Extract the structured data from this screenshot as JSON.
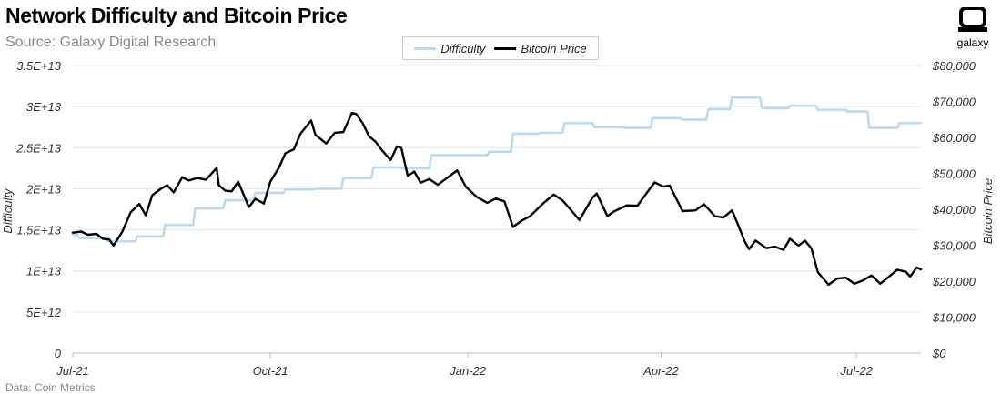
{
  "header": {
    "title": "Network Difficulty and Bitcoin Price",
    "subtitle": "Source: Galaxy Digital Research"
  },
  "logo": {
    "icon": "galaxy-logo-icon",
    "text": "galaxy"
  },
  "footer": {
    "source": "Data: Coin Metrics"
  },
  "colors": {
    "difficulty": "#bcd9ee",
    "price": "#000000",
    "grid": "#e6e6e6"
  },
  "chart_data": {
    "type": "line",
    "title": "Network Difficulty and Bitcoin Price",
    "subtitle": "Source: Galaxy Digital Research",
    "legend": {
      "placement": "top-center",
      "entries": [
        "Difficulty",
        "Bitcoin Price"
      ]
    },
    "grid": {
      "horizontal": true,
      "vertical": false
    },
    "x_axis": {
      "range": [
        "2021-07-01",
        "2022-07-31"
      ],
      "ticks": [
        {
          "date": "2021-07-01",
          "label": "Jul-21"
        },
        {
          "date": "2021-10-01",
          "label": "Oct-21"
        },
        {
          "date": "2022-01-01",
          "label": "Jan-22"
        },
        {
          "date": "2022-04-01",
          "label": "Apr-22"
        },
        {
          "date": "2022-07-01",
          "label": "Jul-22"
        }
      ]
    },
    "y_axis_left": {
      "label": "Difficulty",
      "range": [
        0,
        35000000000000.0
      ],
      "ticks": [
        {
          "value": 0,
          "label": "0"
        },
        {
          "value": 5000000000000.0,
          "label": "5E+12"
        },
        {
          "value": 10000000000000.0,
          "label": "1E+13"
        },
        {
          "value": 15000000000000.0,
          "label": "1.5E+13"
        },
        {
          "value": 20000000000000.0,
          "label": "2E+13"
        },
        {
          "value": 25000000000000.0,
          "label": "2.5E+13"
        },
        {
          "value": 30000000000000.0,
          "label": "3E+13"
        },
        {
          "value": 35000000000000.0,
          "label": "3.5E+13"
        }
      ]
    },
    "y_axis_right": {
      "label": "Bitcoin Price",
      "range": [
        0,
        80000
      ],
      "ticks": [
        {
          "value": 0,
          "label": "$0"
        },
        {
          "value": 10000,
          "label": "$10,000"
        },
        {
          "value": 20000,
          "label": "$20,000"
        },
        {
          "value": 30000,
          "label": "$30,000"
        },
        {
          "value": 40000,
          "label": "$40,000"
        },
        {
          "value": 50000,
          "label": "$50,000"
        },
        {
          "value": 60000,
          "label": "$60,000"
        },
        {
          "value": 70000,
          "label": "$70,000"
        },
        {
          "value": 80000,
          "label": "$80,000"
        }
      ]
    },
    "series": [
      {
        "name": "Difficulty",
        "axis": "left",
        "style": "step",
        "points": [
          [
            "2021-07-01",
            14400000000000.0
          ],
          [
            "2021-07-04",
            14000000000000.0
          ],
          [
            "2021-07-17",
            13600000000000.0
          ],
          [
            "2021-07-31",
            14200000000000.0
          ],
          [
            "2021-08-13",
            15600000000000.0
          ],
          [
            "2021-08-27",
            17600000000000.0
          ],
          [
            "2021-09-10",
            18600000000000.0
          ],
          [
            "2021-09-24",
            19500000000000.0
          ],
          [
            "2021-10-08",
            19900000000000.0
          ],
          [
            "2021-10-22",
            20000000000000.0
          ],
          [
            "2021-11-04",
            21300000000000.0
          ],
          [
            "2021-11-18",
            22600000000000.0
          ],
          [
            "2021-12-01",
            22500000000000.0
          ],
          [
            "2021-12-15",
            24100000000000.0
          ],
          [
            "2021-12-28",
            24100000000000.0
          ],
          [
            "2022-01-11",
            24500000000000.0
          ],
          [
            "2022-01-22",
            26700000000000.0
          ],
          [
            "2022-02-04",
            26800000000000.0
          ],
          [
            "2022-02-15",
            28000000000000.0
          ],
          [
            "2022-03-01",
            27500000000000.0
          ],
          [
            "2022-03-15",
            27400000000000.0
          ],
          [
            "2022-03-28",
            28600000000000.0
          ],
          [
            "2022-04-11",
            28400000000000.0
          ],
          [
            "2022-04-23",
            29700000000000.0
          ],
          [
            "2022-05-04",
            31100000000000.0
          ],
          [
            "2022-05-18",
            29800000000000.0
          ],
          [
            "2022-05-31",
            30100000000000.0
          ],
          [
            "2022-06-13",
            29600000000000.0
          ],
          [
            "2022-06-27",
            29400000000000.0
          ],
          [
            "2022-07-07",
            27400000000000.0
          ],
          [
            "2022-07-21",
            28000000000000.0
          ],
          [
            "2022-07-31",
            28000000000000.0
          ]
        ]
      },
      {
        "name": "Bitcoin Price",
        "axis": "right",
        "style": "line",
        "points": [
          [
            "2021-07-01",
            33500
          ],
          [
            "2021-07-05",
            33800
          ],
          [
            "2021-07-08",
            32900
          ],
          [
            "2021-07-12",
            33200
          ],
          [
            "2021-07-15",
            31800
          ],
          [
            "2021-07-18",
            31600
          ],
          [
            "2021-07-20",
            29900
          ],
          [
            "2021-07-24",
            33700
          ],
          [
            "2021-07-28",
            39200
          ],
          [
            "2021-08-01",
            41500
          ],
          [
            "2021-08-04",
            38300
          ],
          [
            "2021-08-07",
            43900
          ],
          [
            "2021-08-11",
            45700
          ],
          [
            "2021-08-14",
            46700
          ],
          [
            "2021-08-17",
            44700
          ],
          [
            "2021-08-21",
            48900
          ],
          [
            "2021-08-24",
            48000
          ],
          [
            "2021-08-28",
            48700
          ],
          [
            "2021-09-01",
            48200
          ],
          [
            "2021-09-06",
            51500
          ],
          [
            "2021-09-07",
            46700
          ],
          [
            "2021-09-10",
            45200
          ],
          [
            "2021-09-13",
            45000
          ],
          [
            "2021-09-16",
            47700
          ],
          [
            "2021-09-21",
            40600
          ],
          [
            "2021-09-24",
            42900
          ],
          [
            "2021-09-28",
            41600
          ],
          [
            "2021-10-01",
            47700
          ],
          [
            "2021-10-05",
            51600
          ],
          [
            "2021-10-08",
            55600
          ],
          [
            "2021-10-12",
            56700
          ],
          [
            "2021-10-15",
            61000
          ],
          [
            "2021-10-20",
            64700
          ],
          [
            "2021-10-22",
            60700
          ],
          [
            "2021-10-27",
            58300
          ],
          [
            "2021-10-31",
            61300
          ],
          [
            "2021-11-04",
            61500
          ],
          [
            "2021-11-08",
            66800
          ],
          [
            "2021-11-10",
            66500
          ],
          [
            "2021-11-13",
            64000
          ],
          [
            "2021-11-16",
            60300
          ],
          [
            "2021-11-19",
            58800
          ],
          [
            "2021-11-22",
            56400
          ],
          [
            "2021-11-26",
            53700
          ],
          [
            "2021-11-29",
            57500
          ],
          [
            "2021-12-01",
            57100
          ],
          [
            "2021-12-04",
            49300
          ],
          [
            "2021-12-07",
            50500
          ],
          [
            "2021-12-10",
            47400
          ],
          [
            "2021-12-14",
            48400
          ],
          [
            "2021-12-18",
            46800
          ],
          [
            "2021-12-22",
            48600
          ],
          [
            "2021-12-27",
            50800
          ],
          [
            "2021-12-31",
            46300
          ],
          [
            "2022-01-05",
            43500
          ],
          [
            "2022-01-10",
            41800
          ],
          [
            "2022-01-14",
            43000
          ],
          [
            "2022-01-18",
            42200
          ],
          [
            "2022-01-22",
            35100
          ],
          [
            "2022-01-26",
            36800
          ],
          [
            "2022-01-30",
            38100
          ],
          [
            "2022-02-05",
            41600
          ],
          [
            "2022-02-10",
            44100
          ],
          [
            "2022-02-14",
            42500
          ],
          [
            "2022-02-17",
            40500
          ],
          [
            "2022-02-22",
            37000
          ],
          [
            "2022-02-28",
            43200
          ],
          [
            "2022-03-02",
            44400
          ],
          [
            "2022-03-07",
            38100
          ],
          [
            "2022-03-10",
            39400
          ],
          [
            "2022-03-16",
            41100
          ],
          [
            "2022-03-21",
            41000
          ],
          [
            "2022-03-25",
            44300
          ],
          [
            "2022-03-29",
            47500
          ],
          [
            "2022-04-02",
            46300
          ],
          [
            "2022-04-05",
            46600
          ],
          [
            "2022-04-11",
            39500
          ],
          [
            "2022-04-17",
            39700
          ],
          [
            "2022-04-21",
            41400
          ],
          [
            "2022-04-26",
            38100
          ],
          [
            "2022-04-30",
            37700
          ],
          [
            "2022-05-04",
            39700
          ],
          [
            "2022-05-07",
            35500
          ],
          [
            "2022-05-10",
            31000
          ],
          [
            "2022-05-12",
            28900
          ],
          [
            "2022-05-15",
            31300
          ],
          [
            "2022-05-20",
            29200
          ],
          [
            "2022-05-24",
            29600
          ],
          [
            "2022-05-28",
            28700
          ],
          [
            "2022-05-31",
            31800
          ],
          [
            "2022-06-04",
            29900
          ],
          [
            "2022-06-07",
            31300
          ],
          [
            "2022-06-10",
            29100
          ],
          [
            "2022-06-13",
            22500
          ],
          [
            "2022-06-18",
            19000
          ],
          [
            "2022-06-22",
            20700
          ],
          [
            "2022-06-26",
            21000
          ],
          [
            "2022-06-30",
            19300
          ],
          [
            "2022-07-04",
            20200
          ],
          [
            "2022-07-08",
            21600
          ],
          [
            "2022-07-12",
            19300
          ],
          [
            "2022-07-16",
            21200
          ],
          [
            "2022-07-20",
            23200
          ],
          [
            "2022-07-24",
            22600
          ],
          [
            "2022-07-26",
            21300
          ],
          [
            "2022-07-29",
            23800
          ],
          [
            "2022-07-31",
            23300
          ]
        ]
      }
    ]
  }
}
